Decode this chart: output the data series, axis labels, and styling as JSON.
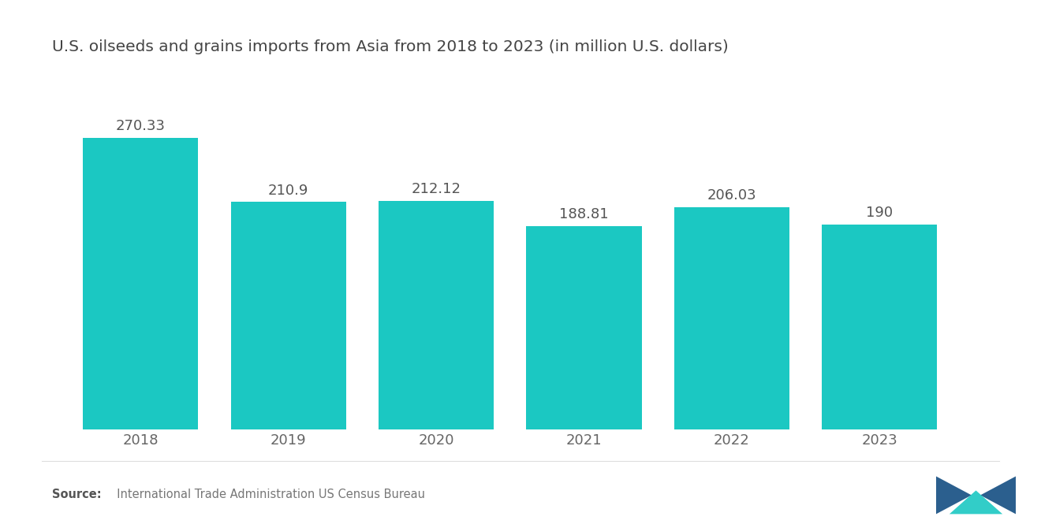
{
  "title": "U.S. oilseeds and grains imports from Asia from 2018 to 2023 (in million U.S. dollars)",
  "categories": [
    "2018",
    "2019",
    "2020",
    "2021",
    "2022",
    "2023"
  ],
  "values": [
    270.33,
    210.9,
    212.12,
    188.81,
    206.03,
    190
  ],
  "bar_color": "#1BC8C2",
  "background_color": "#ffffff",
  "title_fontsize": 14.5,
  "label_fontsize": 13,
  "value_fontsize": 13,
  "source_bold": "Source:",
  "source_normal": "  International Trade Administration US Census Bureau",
  "ylim": [
    0,
    330
  ],
  "bar_width": 0.78
}
